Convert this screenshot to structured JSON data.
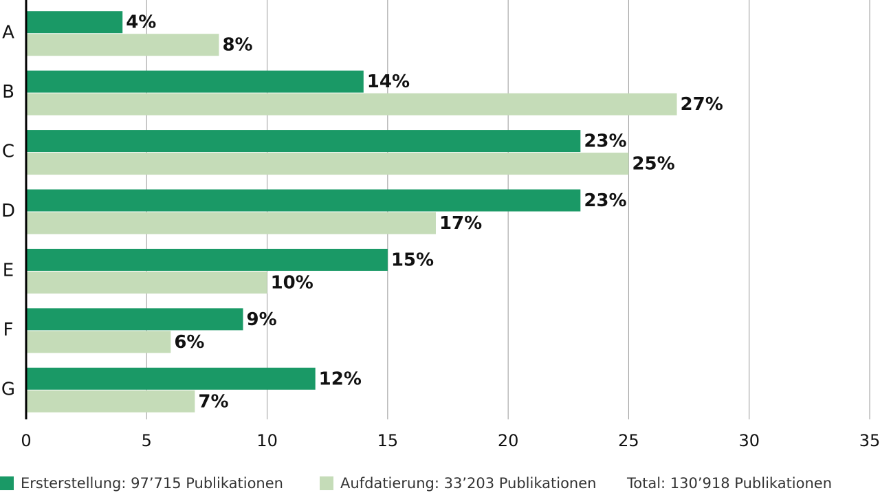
{
  "chart_data": {
    "type": "barh",
    "categories": [
      "A",
      "B",
      "C",
      "D",
      "E",
      "F",
      "G"
    ],
    "series": [
      {
        "name": "Ersterstellung: 97’715 Publikationen",
        "color": "#1a9966",
        "values": [
          4,
          14,
          23,
          23,
          15,
          9,
          12
        ],
        "value_labels": [
          "4%",
          "14%",
          "23%",
          "23%",
          "15%",
          "9%",
          "12%"
        ]
      },
      {
        "name": "Aufdatierung: 33’203 Publikationen",
        "color": "#c5dcb8",
        "values": [
          8,
          27,
          25,
          17,
          10,
          6,
          7
        ],
        "value_labels": [
          "8%",
          "27%",
          "25%",
          "17%",
          "10%",
          "6%",
          "7%"
        ]
      }
    ],
    "annotation": "Total: 130’918 Publikationen",
    "xlim": [
      0,
      35
    ],
    "xticks": [
      0,
      5,
      10,
      15,
      20,
      25,
      30,
      35
    ],
    "grid": true
  }
}
